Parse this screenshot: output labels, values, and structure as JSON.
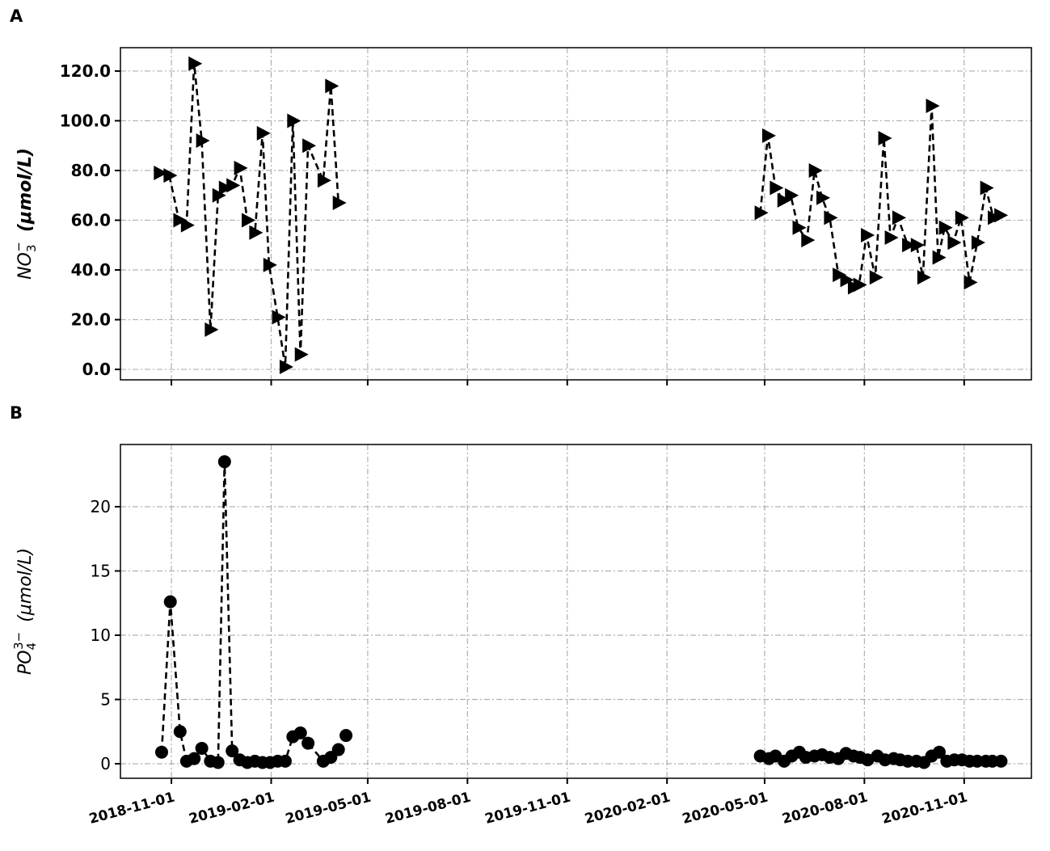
{
  "chart_data": [
    {
      "type": "line",
      "panel_label": "A",
      "ylabel": {
        "base": "NO",
        "sub": "3",
        "sup": "−",
        "unit": "(μmol/L)"
      },
      "bold_labels": true,
      "marker": "triangle-right",
      "show_xtick_labels": false,
      "xlim": [
        "2018-09-15",
        "2021-01-02"
      ],
      "xticks": [
        "2018-11-01",
        "2019-02-01",
        "2019-05-01",
        "2019-08-01",
        "2019-11-01",
        "2020-02-01",
        "2020-05-01",
        "2020-08-01",
        "2020-11-01"
      ],
      "ylim": [
        -4.2,
        129.4
      ],
      "yticks": [
        {
          "value": 0,
          "label": "0.0"
        },
        {
          "value": 20,
          "label": "20.0"
        },
        {
          "value": 40,
          "label": "40.0"
        },
        {
          "value": 60,
          "label": "60.0"
        },
        {
          "value": 80,
          "label": "80.0"
        },
        {
          "value": 100,
          "label": "100.0"
        },
        {
          "value": 120,
          "label": "120.0"
        }
      ],
      "grid": true,
      "color": "#000000",
      "x": [
        "2018-10-21",
        "2018-10-30",
        "2018-11-08",
        "2018-11-15",
        "2018-11-22",
        "2018-11-29",
        "2018-12-07",
        "2018-12-14",
        "2018-12-20",
        "2018-12-27",
        "2019-01-03",
        "2019-01-10",
        "2019-01-17",
        "2019-01-24",
        "2019-01-30",
        "2019-02-07",
        "2019-02-14",
        "2019-02-21",
        "2019-02-28",
        "2019-03-07",
        "2019-03-21",
        "2019-03-28",
        "2019-04-04",
        null,
        "2020-04-27",
        "2020-05-04",
        "2020-05-11",
        "2020-05-18",
        "2020-05-25",
        "2020-06-01",
        "2020-06-09",
        "2020-06-16",
        "2020-06-23",
        "2020-06-30",
        "2020-07-08",
        "2020-07-15",
        "2020-07-22",
        "2020-07-27",
        "2020-08-03",
        "2020-08-11",
        "2020-08-19",
        "2020-08-25",
        "2020-09-01",
        "2020-09-10",
        "2020-09-18",
        "2020-09-24",
        "2020-10-02",
        "2020-10-08",
        "2020-10-14",
        "2020-10-22",
        "2020-10-29",
        "2020-11-06",
        "2020-11-13",
        "2020-11-21",
        "2020-11-28",
        "2020-12-04"
      ],
      "values": [
        79,
        78,
        60,
        58,
        123,
        92,
        16,
        70,
        73,
        74,
        81,
        60,
        55,
        95,
        42,
        21,
        1,
        100,
        6,
        90,
        76,
        114,
        67,
        null,
        63,
        94,
        73,
        68,
        70,
        57,
        52,
        80,
        69,
        61,
        38,
        36,
        33,
        34,
        54,
        37,
        93,
        53,
        61,
        50,
        50,
        37,
        106,
        45,
        57,
        51,
        61,
        35,
        51,
        73,
        61,
        62
      ]
    },
    {
      "type": "line",
      "panel_label": "B",
      "ylabel": {
        "base": "PO",
        "sub": "4",
        "sup": "3−",
        "unit": "(μmol/L)"
      },
      "bold_labels": false,
      "marker": "circle",
      "show_xtick_labels": true,
      "xlim": [
        "2018-09-15",
        "2021-01-02"
      ],
      "xticks": [
        "2018-11-01",
        "2019-02-01",
        "2019-05-01",
        "2019-08-01",
        "2019-11-01",
        "2020-02-01",
        "2020-05-01",
        "2020-08-01",
        "2020-11-01"
      ],
      "ylim": [
        -1.13,
        24.84
      ],
      "yticks": [
        0,
        5,
        10,
        15,
        20
      ],
      "grid": true,
      "color": "#000000",
      "x": [
        "2018-10-23",
        "2018-10-31",
        "2018-11-09",
        "2018-11-15",
        "2018-11-22",
        "2018-11-29",
        "2018-12-07",
        "2018-12-14",
        "2018-12-20",
        "2018-12-27",
        "2019-01-03",
        "2019-01-10",
        "2019-01-17",
        "2019-01-24",
        "2019-01-31",
        "2019-02-07",
        "2019-02-14",
        "2019-02-21",
        "2019-02-28",
        "2019-03-07",
        "2019-03-21",
        "2019-03-28",
        "2019-04-04",
        "2019-04-11",
        null,
        "2020-04-27",
        "2020-05-05",
        "2020-05-11",
        "2020-05-19",
        "2020-05-26",
        "2020-06-02",
        "2020-06-08",
        "2020-06-16",
        "2020-06-23",
        "2020-06-30",
        "2020-07-08",
        "2020-07-15",
        "2020-07-22",
        "2020-07-28",
        "2020-08-04",
        "2020-08-13",
        "2020-08-20",
        "2020-08-28",
        "2020-09-03",
        "2020-09-10",
        "2020-09-18",
        "2020-09-25",
        "2020-10-02",
        "2020-10-09",
        "2020-10-16",
        "2020-10-23",
        "2020-10-30",
        "2020-11-06",
        "2020-11-13",
        "2020-11-21",
        "2020-11-27",
        "2020-12-05"
      ],
      "values": [
        0.9,
        12.6,
        2.5,
        0.2,
        0.4,
        1.2,
        0.2,
        0.1,
        23.5,
        1.0,
        0.3,
        0.1,
        0.2,
        0.1,
        0.1,
        0.2,
        0.2,
        2.1,
        2.4,
        1.6,
        0.2,
        0.5,
        1.1,
        2.2,
        null,
        0.6,
        0.4,
        0.6,
        0.2,
        0.6,
        0.9,
        0.5,
        0.6,
        0.7,
        0.5,
        0.4,
        0.8,
        0.6,
        0.5,
        0.3,
        0.6,
        0.3,
        0.4,
        0.3,
        0.2,
        0.2,
        0.1,
        0.6,
        0.9,
        0.2,
        0.3,
        0.3,
        0.2,
        0.2,
        0.2,
        0.2,
        0.2
      ]
    }
  ]
}
